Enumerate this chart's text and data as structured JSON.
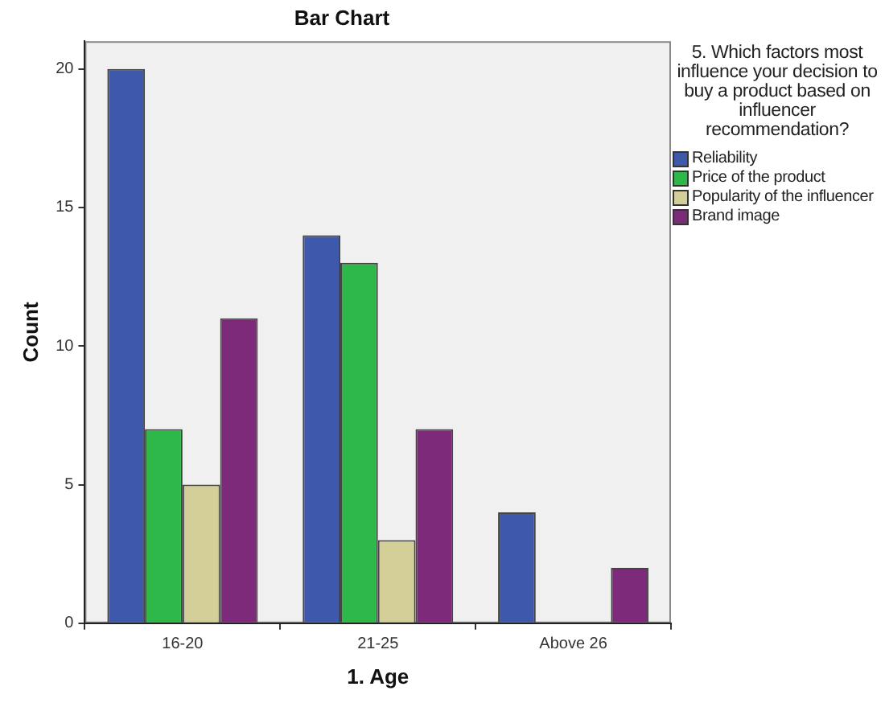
{
  "chart_data": {
    "type": "bar",
    "title": "Bar Chart",
    "xlabel": "1. Age",
    "ylabel": "Count",
    "legend_title": "5. Which factors most influence your decision to buy a product based on influencer recommendation?",
    "categories": [
      "16-20",
      "21-25",
      "Above 26"
    ],
    "series": [
      {
        "name": "Reliability",
        "color": "#3e58ac",
        "values": [
          20,
          14,
          4
        ]
      },
      {
        "name": "Price of the product",
        "color": "#2fb84a",
        "values": [
          7,
          13,
          0
        ]
      },
      {
        "name": "Popularity of the influencer",
        "color": "#d4cf98",
        "values": [
          5,
          3,
          0
        ]
      },
      {
        "name": "Brand image",
        "color": "#7e2a7b",
        "values": [
          11,
          7,
          2
        ]
      }
    ],
    "ylim": [
      0,
      21
    ],
    "yticks": [
      0,
      5,
      10,
      15,
      20
    ],
    "grid": false,
    "legend": "top right"
  }
}
